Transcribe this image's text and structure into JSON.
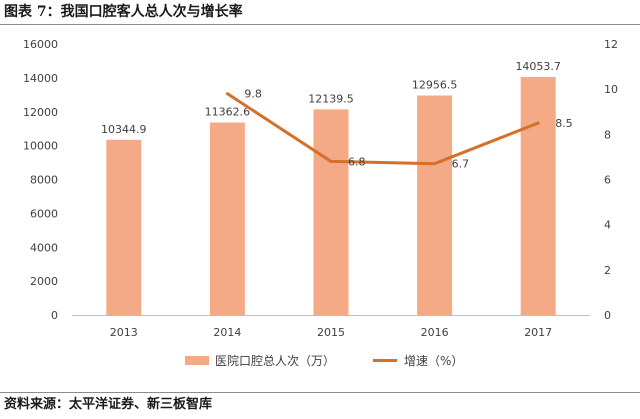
{
  "header": {
    "title": "图表 7：我国口腔客人总人次与增长率"
  },
  "footer": {
    "source": "资料来源：太平洋证券、新三板智库"
  },
  "chart_data": {
    "type": "bar+line",
    "categories": [
      "2013",
      "2014",
      "2015",
      "2016",
      "2017"
    ],
    "series": [
      {
        "name": "医院口腔总人次（万）",
        "type": "bar",
        "axis": "left",
        "values": [
          10344.9,
          11362.6,
          12139.5,
          12956.5,
          14053.7
        ],
        "labels": [
          "10344.9",
          "11362.6",
          "12139.5",
          "12956.5",
          "14053.7"
        ],
        "color": "#F4AA86"
      },
      {
        "name": "增速（%）",
        "type": "line",
        "axis": "right",
        "values": [
          null,
          9.8,
          6.8,
          6.7,
          8.5
        ],
        "labels": [
          "",
          "9.8",
          "6.8",
          "6.7",
          "8.5"
        ],
        "color": "#D5702A"
      }
    ],
    "y_left": {
      "min": 0,
      "max": 16000,
      "ticks": [
        0,
        2000,
        4000,
        6000,
        8000,
        10000,
        12000,
        14000,
        16000
      ]
    },
    "y_right": {
      "min": 0,
      "max": 12,
      "ticks": [
        0,
        2,
        4,
        6,
        8,
        10,
        12
      ]
    },
    "grid": false,
    "legend_position": "bottom"
  }
}
